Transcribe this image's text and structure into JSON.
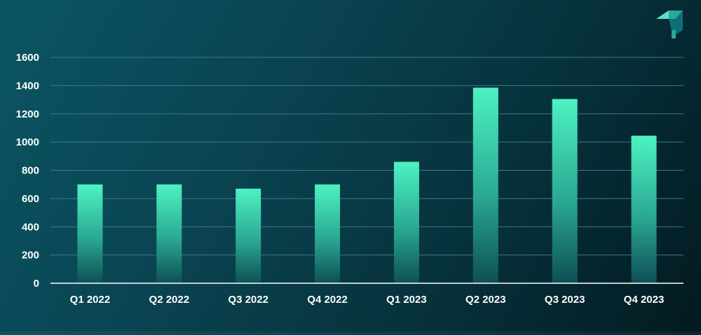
{
  "chart_data": {
    "type": "bar",
    "categories": [
      "Q1 2022",
      "Q2 2022",
      "Q3 2022",
      "Q4 2022",
      "Q1 2023",
      "Q2 2023",
      "Q3 2023",
      "Q4 2023"
    ],
    "values": [
      700,
      700,
      670,
      700,
      860,
      1385,
      1305,
      1045
    ],
    "ylim": [
      0,
      1600
    ],
    "yticks": [
      0,
      200,
      400,
      600,
      800,
      1000,
      1200,
      1400,
      1600
    ],
    "grid": true,
    "title": "",
    "xlabel": "",
    "ylabel": ""
  },
  "colors": {
    "bar_top": "#4ef2c2",
    "bar_bottom": "#0e4f55",
    "gridline": "#3f7883",
    "axis": "#ffffff",
    "text": "#ffffff",
    "logo_light": "#5fe0c2",
    "logo_mid": "#25a9a0",
    "logo_dark": "#0f6f78"
  },
  "icons": {
    "logo": "brand-logo-icon"
  }
}
